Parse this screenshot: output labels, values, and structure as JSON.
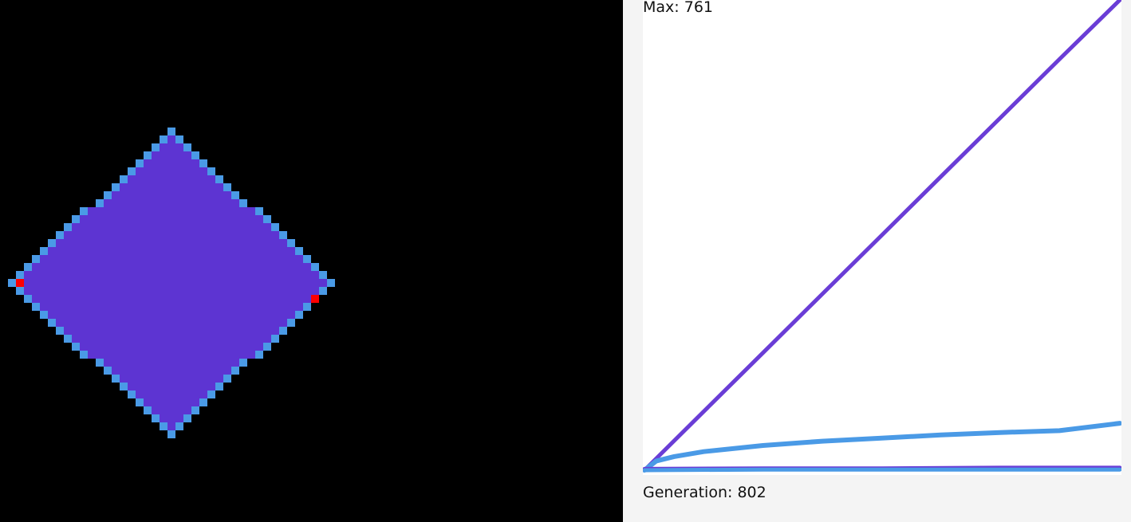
{
  "simulation": {
    "colors": {
      "background": "#000000",
      "fill": "#5d34d2",
      "border": "#4a9ae6",
      "marker": "#ff0000"
    },
    "cell_size": 10
  },
  "stats": {
    "max_label": "Max:",
    "max_value": "761",
    "generation_label": "Generation:",
    "generation_value": "802"
  },
  "chart_data": {
    "type": "line",
    "x": [
      0,
      802
    ],
    "ylim": [
      0,
      761
    ],
    "series": [
      {
        "color": "#6a3dd6",
        "points": [
          [
            0,
            0
          ],
          [
            100,
            95
          ],
          [
            200,
            190
          ],
          [
            300,
            285
          ],
          [
            400,
            380
          ],
          [
            500,
            475
          ],
          [
            600,
            570
          ],
          [
            700,
            665
          ],
          [
            802,
            761
          ]
        ]
      },
      {
        "color": "#4a9ae6",
        "points": [
          [
            0,
            0
          ],
          [
            20,
            15
          ],
          [
            50,
            22
          ],
          [
            100,
            30
          ],
          [
            200,
            40
          ],
          [
            300,
            47
          ],
          [
            400,
            52
          ],
          [
            500,
            57
          ],
          [
            600,
            61
          ],
          [
            700,
            64
          ],
          [
            802,
            76
          ]
        ]
      },
      {
        "color": "#6a3dd6",
        "points": [
          [
            0,
            2
          ],
          [
            200,
            3
          ],
          [
            400,
            3
          ],
          [
            600,
            4
          ],
          [
            802,
            4
          ]
        ]
      },
      {
        "color": "#4a9ae6",
        "points": [
          [
            0,
            0
          ],
          [
            200,
            1
          ],
          [
            400,
            1
          ],
          [
            600,
            1
          ],
          [
            802,
            1
          ]
        ]
      }
    ]
  }
}
